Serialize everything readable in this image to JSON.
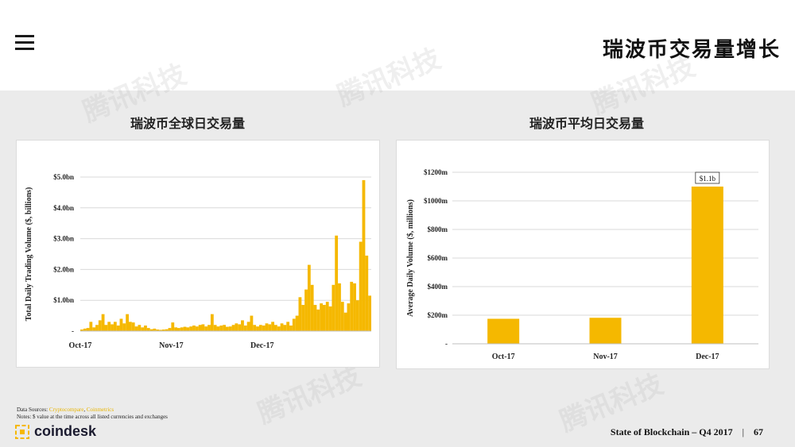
{
  "header": {
    "title": "瑞波币交易量增长"
  },
  "watermark": "腾讯科技",
  "chart_data": [
    {
      "type": "bar",
      "title": "瑞波币全球日交易量",
      "ylabel": "Total Daily Trading Volume ($, billions)",
      "xlabel": "",
      "ylim": [
        0,
        5.0
      ],
      "yticks": [
        "-",
        "$1.0bn",
        "$2.0bn",
        "$3.0bn",
        "$4.0bn",
        "$5.0bn"
      ],
      "xtick_labels": [
        "Oct-17",
        "Nov-17",
        "Dec-17"
      ],
      "xtick_index": [
        0,
        30,
        60
      ],
      "grid": true,
      "bar_color": "#f5b800",
      "values": [
        0.05,
        0.08,
        0.1,
        0.3,
        0.12,
        0.2,
        0.35,
        0.55,
        0.2,
        0.3,
        0.22,
        0.3,
        0.18,
        0.4,
        0.25,
        0.55,
        0.3,
        0.28,
        0.15,
        0.2,
        0.12,
        0.18,
        0.1,
        0.06,
        0.08,
        0.05,
        0.04,
        0.05,
        0.06,
        0.1,
        0.28,
        0.12,
        0.1,
        0.12,
        0.14,
        0.12,
        0.15,
        0.18,
        0.15,
        0.2,
        0.22,
        0.15,
        0.2,
        0.55,
        0.2,
        0.15,
        0.18,
        0.2,
        0.14,
        0.15,
        0.2,
        0.25,
        0.22,
        0.35,
        0.18,
        0.3,
        0.5,
        0.2,
        0.15,
        0.2,
        0.18,
        0.25,
        0.22,
        0.3,
        0.2,
        0.15,
        0.25,
        0.2,
        0.3,
        0.18,
        0.4,
        0.5,
        1.1,
        0.85,
        1.35,
        2.15,
        1.5,
        0.85,
        0.7,
        0.9,
        0.85,
        0.95,
        0.8,
        1.5,
        3.1,
        1.55,
        0.95,
        0.6,
        0.9,
        1.6,
        1.55,
        1.0,
        2.9,
        4.9,
        2.45,
        1.15
      ]
    },
    {
      "type": "bar",
      "title": "瑞波币平均日交易量",
      "ylabel": "Average Daily Volume ($, millions)",
      "xlabel": "",
      "categories": [
        "Oct-17",
        "Nov-17",
        "Dec-17"
      ],
      "values": [
        175,
        182,
        1100
      ],
      "ylim": [
        0,
        1200
      ],
      "yticks": [
        "-",
        "$200m",
        "$400m",
        "$600m",
        "$800m",
        "$1000m",
        "$1200m"
      ],
      "annotation": "$1.1b",
      "grid": true,
      "bar_color": "#f5b800"
    }
  ],
  "footer": {
    "sources_label": "Data Sources:",
    "source_1": "Cryptocompare",
    "source_sep": ", ",
    "source_2": "Coinmetrics",
    "notes": "Notes: $ value at the time across all listed currencies and exchanges",
    "logo_text": "coindesk",
    "report": "State of Blockchain – Q4 2017",
    "separator": "|",
    "page_number": "67"
  }
}
